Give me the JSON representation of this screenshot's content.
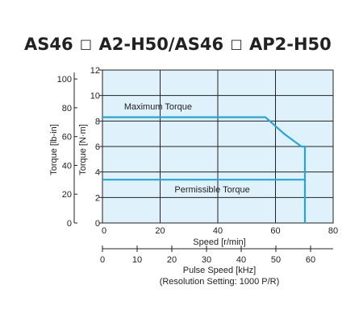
{
  "title": {
    "part1": "AS46",
    "part2": "A2-H50/AS46",
    "part3": "AP2-H50"
  },
  "chart_data": {
    "type": "line",
    "x_label": "Speed [r/min]",
    "x_range": [
      0,
      80
    ],
    "x_ticks": [
      0,
      20,
      40,
      60,
      80
    ],
    "y_label_right": "Torque [N·m]",
    "y_range": [
      0,
      12
    ],
    "y_ticks": [
      0,
      2,
      4,
      6,
      8,
      10,
      12
    ],
    "y_label_left": "Torque [lb-in]",
    "y_left_ticks": [
      0,
      20,
      40,
      60,
      80,
      100
    ],
    "x2_label": "Pulse Speed [kHz]",
    "x2_sublabel": "(Resolution Setting: 1000 P/R)",
    "x2_ticks": [
      0,
      10,
      20,
      30,
      40,
      50,
      60
    ],
    "grid": true,
    "plot_background": "#dff1fa",
    "line_color": "#24a6dc",
    "series": [
      {
        "name": "Maximum Torque",
        "points": [
          [
            0,
            8.3
          ],
          [
            56.5,
            8.3
          ],
          [
            63,
            7.0
          ],
          [
            69,
            6.0
          ],
          [
            70.2,
            6.0
          ],
          [
            70.2,
            0
          ]
        ]
      },
      {
        "name": "Permissible Torque",
        "points": [
          [
            0,
            3.4
          ],
          [
            70.2,
            3.4
          ]
        ]
      }
    ],
    "annotations": [
      {
        "text": "Maximum Torque",
        "x": 7.5,
        "y": 8.9
      },
      {
        "text": "Permissible Torque",
        "x": 25,
        "y": 2.4
      }
    ]
  }
}
